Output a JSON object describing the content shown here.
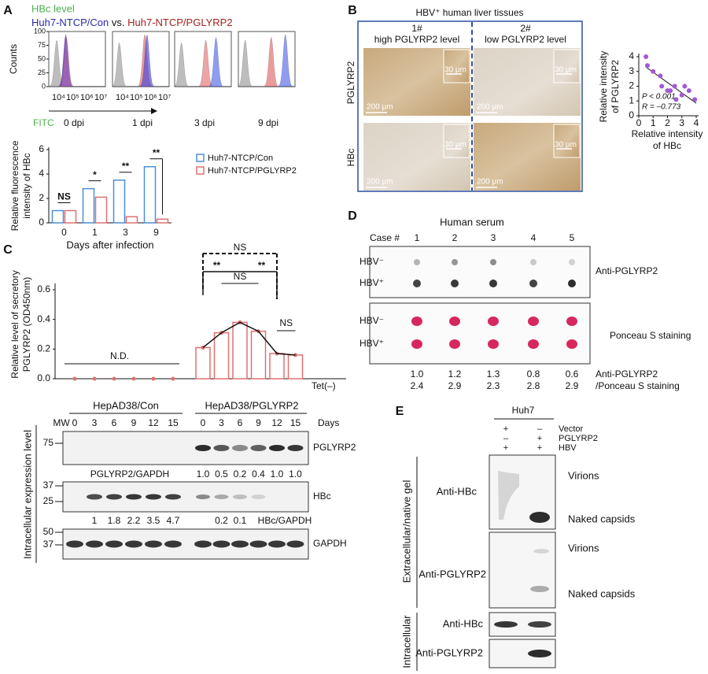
{
  "A": {
    "label": "A",
    "key": {
      "title": "HBc level",
      "con": "Huh7-NTCP/Con",
      "vs": "vs.",
      "pg": "Huh7-NTCP/PGLYRP2"
    },
    "flow": {
      "ylabel": "Counts",
      "yticks": [
        0,
        25,
        50,
        75,
        100
      ],
      "xticks": [
        "10⁴",
        "10⁵",
        "10⁶",
        "10⁷"
      ],
      "xlabel": "FITC",
      "timepoints": [
        "0 dpi",
        "1 dpi",
        "3 dpi",
        "9 dpi"
      ]
    },
    "bars": {
      "ylabel": [
        "Relative fluorescence",
        "intensity of HBc"
      ],
      "xlabel": "Days after infection",
      "categories": [
        "0",
        "1",
        "3",
        "9"
      ],
      "ylim": [
        0,
        6
      ],
      "yticks": [
        0,
        2,
        4,
        6
      ],
      "series": [
        {
          "name": "Huh7-NTCP/Con",
          "color": "#4a8fd9",
          "values": [
            1.0,
            2.8,
            3.5,
            4.6
          ]
        },
        {
          "name": "Huh7-NTCP/PGLYRP2",
          "color": "#e07070",
          "values": [
            1.0,
            2.1,
            0.5,
            0.3
          ]
        }
      ],
      "significance": [
        "NS",
        "*",
        "**",
        "**"
      ]
    }
  },
  "B": {
    "label": "B",
    "title": "HBV⁺ human liver tissues",
    "columns": [
      {
        "id": "1#",
        "desc": "high PGLYRP2 level"
      },
      {
        "id": "2#",
        "desc": "low PGLYRP2 level"
      }
    ],
    "rows": [
      "PGLYRP2",
      "HBc"
    ],
    "scale_large": "200 μm",
    "scale_small": "30 μm",
    "scatter": {
      "xlabel": [
        "Relative intensity",
        "of HBc"
      ],
      "ylabel": [
        "Relative intensity",
        "of PGLYRP2"
      ],
      "xlim": [
        0,
        4
      ],
      "ylim": [
        0,
        4
      ],
      "xticks": [
        0,
        1,
        2,
        3,
        4
      ],
      "yticks": [
        0,
        1,
        2,
        3,
        4
      ],
      "color": "#a15ad6",
      "x": [
        0.5,
        0.6,
        1.0,
        1.5,
        1.6,
        2.0,
        2.2,
        2.5,
        2.6,
        3.0,
        3.2,
        3.5,
        3.9
      ],
      "y": [
        4.0,
        3.4,
        3.0,
        2.7,
        2.0,
        1.7,
        1.7,
        2.0,
        1.1,
        1.4,
        2.0,
        1.7,
        1.1
      ],
      "p": "P < 0.001",
      "r": "R = –0.773"
    }
  },
  "C": {
    "label": "C",
    "bars": {
      "ylabel": [
        "Relative level of secretory",
        "PGLYRP2 (OD450nm)"
      ],
      "ylim": [
        0,
        0.6
      ],
      "yticks": [
        {
          "value": 0,
          "label": "0.0"
        },
        0.2,
        0.4,
        0.6
      ],
      "color": "#e07070",
      "series": [
        {
          "values": [
            0,
            0,
            0,
            0,
            0,
            0
          ]
        },
        {
          "values": [
            0.21,
            0.31,
            0.38,
            0.32,
            0.17,
            0.16
          ]
        }
      ],
      "nd": "N.D.",
      "significance": [
        "NS",
        "**",
        "NS",
        "**",
        "NS"
      ]
    },
    "blot": {
      "tet": "Tet(–)",
      "mw": "MW",
      "groups": [
        "HepAD38/Con",
        "HepAD38/PGLYRP2"
      ],
      "days": [
        "0",
        "3",
        "6",
        "9",
        "12",
        "15"
      ],
      "days_label": "Days",
      "markers": [
        "75",
        "37",
        "25",
        "50",
        "37"
      ],
      "proteins": [
        "PGLYRP2",
        "HBc",
        "GAPDH"
      ],
      "ratio1_label": "PGLYRP2/GAPDH",
      "ratio1": [
        "1.0",
        "0.5",
        "0.2",
        "0.4",
        "1.0",
        "1.0"
      ],
      "ratio2_label": "HBc/GAPDH",
      "ratio2_con": [
        "1",
        "1.8",
        "2.2",
        "3.5",
        "4.7"
      ],
      "ratio2_pg": [
        "0.2",
        "0.1"
      ],
      "side": "Intracellular expression level"
    }
  },
  "D": {
    "label": "D",
    "title": "Human serum",
    "case_label": "Case #",
    "cases": [
      "1",
      "2",
      "3",
      "4",
      "5"
    ],
    "rows": [
      "HBV⁻",
      "HBV⁺"
    ],
    "blot1": "Anti-PGLYRP2",
    "blot2": "Ponceau S staining",
    "ratio_top": [
      "1.0",
      "1.2",
      "1.3",
      "0.8",
      "0.6"
    ],
    "ratio_bottom": [
      "2.4",
      "2.9",
      "2.3",
      "2.8",
      "2.9"
    ],
    "ratio_label": [
      "Anti-PGLYRP2",
      "/Ponceau S staining"
    ]
  },
  "E": {
    "label": "E",
    "cell": "Huh7",
    "conditions": [
      {
        "name": "Vector",
        "signs": [
          "+",
          "–"
        ]
      },
      {
        "name": "PGLYRP2",
        "signs": [
          "–",
          "+"
        ]
      },
      {
        "name": "HBV",
        "signs": [
          "+",
          "+"
        ]
      }
    ],
    "extracellular": "Extracellular/native gel",
    "intracellular": "Intracellular",
    "antibodies": [
      "Anti-HBc",
      "Anti-PGLYRP2"
    ],
    "bands": [
      "Virions",
      "Naked capsids"
    ]
  }
}
